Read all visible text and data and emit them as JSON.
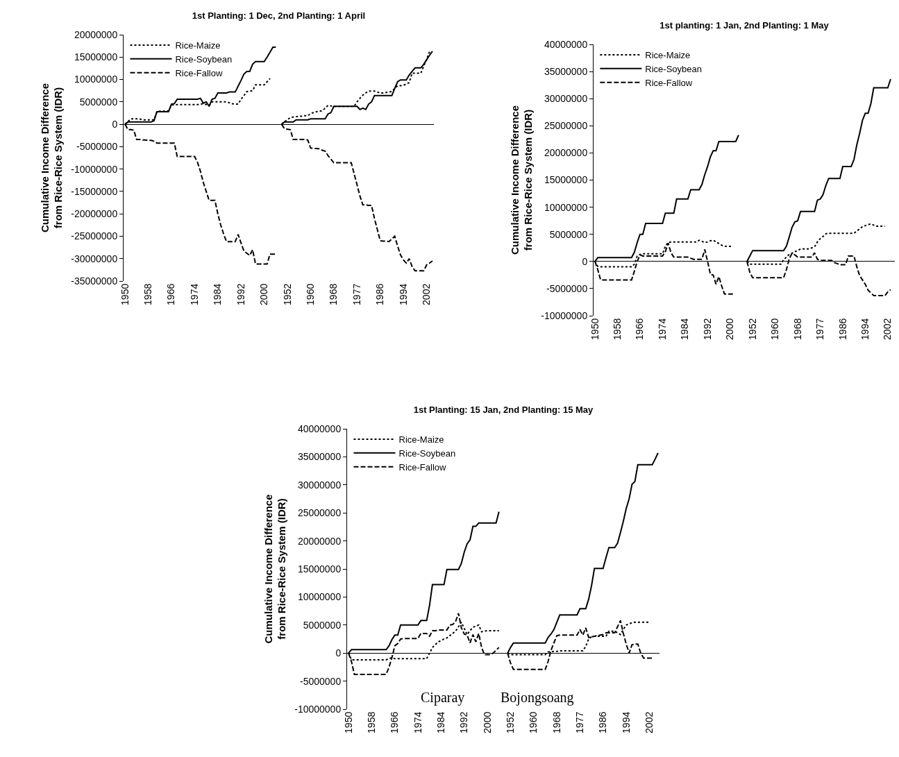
{
  "chart_data": [
    {
      "type": "line",
      "title": "1st Planting: 1 Dec, 2nd Planting: 1 April",
      "ylabel": "Cumulative Income Difference\nfrom Rice-Rice System (IDR)",
      "categories": [
        "1950",
        null,
        null,
        null,
        null,
        null,
        null,
        null,
        "1958",
        null,
        null,
        null,
        null,
        null,
        null,
        null,
        "1966",
        null,
        null,
        null,
        null,
        null,
        null,
        null,
        "1974",
        null,
        null,
        null,
        null,
        null,
        null,
        null,
        "1984",
        null,
        null,
        null,
        null,
        null,
        null,
        null,
        "1992",
        null,
        null,
        null,
        null,
        null,
        null,
        null,
        "2000",
        null,
        null,
        null,
        null,
        null,
        null,
        null,
        "1952",
        null,
        null,
        null,
        null,
        null,
        null,
        null,
        "1960",
        null,
        null,
        null,
        null,
        null,
        null,
        null,
        "1968",
        null,
        null,
        null,
        null,
        null,
        null,
        null,
        "1977",
        null,
        null,
        null,
        null,
        null,
        null,
        null,
        "1986",
        null,
        null,
        null,
        null,
        null,
        null,
        null,
        "1994",
        null,
        null,
        null,
        null,
        null,
        null,
        null,
        "2002",
        null,
        null
      ],
      "ylim": [
        -35000000,
        20000000
      ],
      "yticks": [
        -35000000,
        -30000000,
        -25000000,
        -20000000,
        -15000000,
        -10000000,
        -5000000,
        0,
        5000000,
        10000000,
        15000000,
        20000000
      ],
      "legend": "top left",
      "series": [
        {
          "name": "Rice-Maize",
          "color": "#000000",
          "line_style": "dotted",
          "values": [
            0,
            600000,
            1200000,
            1200000,
            1200000,
            1200000,
            1000000,
            1000000,
            1000000,
            1000000,
            1000000,
            2800000,
            2900000,
            2900000,
            3000000,
            3000000,
            4300000,
            4300000,
            4400000,
            4400000,
            4400000,
            4400000,
            4400000,
            4400000,
            4400000,
            4400000,
            4500000,
            4600000,
            4400000,
            4200000,
            5000000,
            5000000,
            5000000,
            5000000,
            5000000,
            5000000,
            4800000,
            4600000,
            4500000,
            4500000,
            5600000,
            6400000,
            7300000,
            7400000,
            7500000,
            8800000,
            8800000,
            8800000,
            8800000,
            9500000,
            10200000,
            null,
            null,
            null,
            0,
            600000,
            1000000,
            1500000,
            1600000,
            1700000,
            1800000,
            1800000,
            1900000,
            1900000,
            2400000,
            2600000,
            2800000,
            2900000,
            3000000,
            3600000,
            4200000,
            4100000,
            4000000,
            4000000,
            4000000,
            4000000,
            4000000,
            4000000,
            4000000,
            4000000,
            5000000,
            5800000,
            6500000,
            7000000,
            7400000,
            7400000,
            7400000,
            7200000,
            7000000,
            7000000,
            7100000,
            7200000,
            7300000,
            8000000,
            8600000,
            8600000,
            8700000,
            9000000,
            9300000,
            11400000,
            11400000,
            11400000,
            11400000,
            13000000,
            14500000,
            16200000,
            null
          ]
        },
        {
          "name": "Rice-Soybean",
          "color": "#000000",
          "line_style": "solid",
          "values": [
            0,
            500000,
            500000,
            500000,
            500000,
            500000,
            500000,
            500000,
            500000,
            500000,
            800000,
            2800000,
            2800000,
            2800000,
            2800000,
            2800000,
            4500000,
            4600000,
            5600000,
            5600000,
            5600000,
            5600000,
            5600000,
            5600000,
            5600000,
            5600000,
            5800000,
            4700000,
            5000000,
            4000000,
            5600000,
            5800000,
            7000000,
            7000000,
            7000000,
            7000000,
            7200000,
            7200000,
            7200000,
            8500000,
            9800000,
            11200000,
            11800000,
            11800000,
            13400000,
            14000000,
            14000000,
            14000000,
            14000000,
            15000000,
            16100000,
            17200000,
            17200000,
            null,
            0,
            500000,
            500000,
            500000,
            500000,
            1000000,
            1000000,
            1000000,
            1000000,
            1000000,
            1200000,
            1200000,
            1200000,
            1200000,
            1200000,
            1200000,
            2300000,
            2600000,
            4000000,
            4000000,
            4000000,
            4000000,
            4000000,
            4000000,
            4000000,
            4000000,
            4000000,
            3300000,
            3600000,
            3300000,
            4500000,
            5000000,
            6400000,
            6400000,
            6400000,
            6400000,
            6400000,
            6400000,
            6400000,
            8000000,
            9500000,
            9900000,
            9900000,
            9900000,
            11000000,
            11800000,
            12600000,
            12600000,
            12600000,
            13400000,
            14400000,
            15400000,
            16300000
          ]
        },
        {
          "name": "Rice-Fallow",
          "color": "#000000",
          "line_style": "dashed",
          "values": [
            0,
            -1200000,
            -1200000,
            -1300000,
            -3400000,
            -3400000,
            -3500000,
            -3500000,
            -3600000,
            -3600000,
            -3800000,
            -4200000,
            -4200000,
            -4200000,
            -4200000,
            -4200000,
            -4200000,
            -4200000,
            -7200000,
            -7200000,
            -7200000,
            -7200000,
            -7200000,
            -7200000,
            -7200000,
            -8500000,
            -10500000,
            -13000000,
            -15000000,
            -17000000,
            -17000000,
            -17000000,
            -20000000,
            -22500000,
            -24500000,
            -26200000,
            -26200000,
            -26200000,
            -26200000,
            -24600000,
            -26500000,
            -28300000,
            -28800000,
            -29300000,
            -28000000,
            -31200000,
            -31200000,
            -31200000,
            -31200000,
            -31200000,
            -29000000,
            -29000000,
            -29000000,
            null,
            0,
            -1000000,
            -1100000,
            -1200000,
            -3400000,
            -3400000,
            -3400000,
            -3400000,
            -3400000,
            -3500000,
            -5300000,
            -5400000,
            -5400000,
            -5500000,
            -5800000,
            -6000000,
            -7000000,
            -7800000,
            -8600000,
            -8600000,
            -8600000,
            -8600000,
            -8600000,
            -8600000,
            -8600000,
            -11000000,
            -13500000,
            -16000000,
            -18000000,
            -18000000,
            -18100000,
            -18100000,
            -21000000,
            -23500000,
            -26000000,
            -26100000,
            -26100000,
            -26200000,
            -25600000,
            -25000000,
            -27200000,
            -29200000,
            -30300000,
            -31000000,
            -30000000,
            -31800000,
            -32700000,
            -32700000,
            -32700000,
            -32700000,
            -31400000,
            -31000000,
            -30500000
          ]
        }
      ]
    },
    {
      "type": "line",
      "title": "1st planting: 1 Jan, 2nd Planting: 1 May",
      "ylabel": "Cumulative Income Difference\nfrom Rice-Rice System (IDR)",
      "categories": [
        "1950",
        null,
        null,
        null,
        null,
        null,
        null,
        null,
        "1958",
        null,
        null,
        null,
        null,
        null,
        null,
        null,
        "1966",
        null,
        null,
        null,
        null,
        null,
        null,
        null,
        "1974",
        null,
        null,
        null,
        null,
        null,
        null,
        null,
        "1984",
        null,
        null,
        null,
        null,
        null,
        null,
        null,
        "1992",
        null,
        null,
        null,
        null,
        null,
        null,
        null,
        "2000",
        null,
        null,
        null,
        null,
        null,
        null,
        null,
        "1952",
        null,
        null,
        null,
        null,
        null,
        null,
        null,
        "1960",
        null,
        null,
        null,
        null,
        null,
        null,
        null,
        "1968",
        null,
        null,
        null,
        null,
        null,
        null,
        null,
        "1977",
        null,
        null,
        null,
        null,
        null,
        null,
        null,
        "1986",
        null,
        null,
        null,
        null,
        null,
        null,
        null,
        "1994",
        null,
        null,
        null,
        null,
        null,
        null,
        null,
        "2002",
        null,
        null
      ],
      "ylim": [
        -10000000,
        40000000
      ],
      "yticks": [
        -10000000,
        -5000000,
        0,
        5000000,
        10000000,
        15000000,
        20000000,
        25000000,
        30000000,
        35000000,
        40000000
      ],
      "legend": "top left",
      "series": [
        {
          "name": "Rice-Maize",
          "color": "#000000",
          "line_style": "dotted",
          "values": [
            0,
            -900000,
            -1000000,
            -1000000,
            -1000000,
            -1000000,
            -1000000,
            -1000000,
            -1000000,
            -1000000,
            -1000000,
            -1000000,
            -1000000,
            -1000000,
            -500000,
            1000000,
            1300000,
            1400000,
            1400000,
            1400000,
            1400000,
            1400000,
            1400000,
            1400000,
            1400000,
            2800000,
            3500000,
            3600000,
            3600000,
            3600000,
            3600000,
            3600000,
            3600000,
            3600000,
            3600000,
            3600000,
            3600000,
            3900000,
            3700000,
            3500000,
            3600000,
            3800000,
            3900000,
            3600000,
            3300000,
            3000000,
            2800000,
            2800000,
            2800000,
            2800000,
            null,
            null,
            null,
            null,
            0,
            -500000,
            -500000,
            -500000,
            -500000,
            -500000,
            -500000,
            -500000,
            -500000,
            -500000,
            -500000,
            -500000,
            -500000,
            300000,
            800000,
            1300000,
            1500000,
            1800000,
            2000000,
            2300000,
            2300000,
            2300000,
            2300000,
            2500000,
            2700000,
            3600000,
            4200000,
            4600000,
            5100000,
            5200000,
            5200000,
            5200000,
            5200000,
            5200000,
            5200000,
            5200000,
            5200000,
            5200000,
            5200000,
            5600000,
            6000000,
            6400000,
            6600000,
            6800000,
            6900000,
            6700000,
            6500000,
            6500000,
            6500000,
            6500000,
            null,
            null,
            null
          ]
        },
        {
          "name": "Rice-Soybean",
          "color": "#000000",
          "line_style": "solid",
          "values": [
            0,
            700000,
            700000,
            700000,
            700000,
            700000,
            700000,
            700000,
            700000,
            700000,
            700000,
            700000,
            700000,
            700000,
            1700000,
            3500000,
            5000000,
            5000000,
            7000000,
            7000000,
            7000000,
            7000000,
            7000000,
            7000000,
            7000000,
            8900000,
            8900000,
            8900000,
            8900000,
            11500000,
            11500000,
            11500000,
            11500000,
            11500000,
            13200000,
            13200000,
            13200000,
            13200000,
            14200000,
            16000000,
            17500000,
            19300000,
            20400000,
            20400000,
            22100000,
            22100000,
            22100000,
            22100000,
            22100000,
            22100000,
            22100000,
            23300000,
            null,
            null,
            0,
            1000000,
            2000000,
            2000000,
            2000000,
            2000000,
            2000000,
            2000000,
            2000000,
            2000000,
            2000000,
            2000000,
            2000000,
            2000000,
            2800000,
            4500000,
            6300000,
            7300000,
            7500000,
            9200000,
            9200000,
            9200000,
            9200000,
            9200000,
            9200000,
            11300000,
            11500000,
            12300000,
            14000000,
            15300000,
            15300000,
            15300000,
            15300000,
            15300000,
            17500000,
            17500000,
            17500000,
            17500000,
            18800000,
            21500000,
            23600000,
            26000000,
            27300000,
            27300000,
            29100000,
            32000000,
            32000000,
            32000000,
            32000000,
            32000000,
            32000000,
            33600000,
            null
          ]
        },
        {
          "name": "Rice-Fallow",
          "color": "#000000",
          "line_style": "dashed",
          "values": [
            0,
            -1500000,
            -3400000,
            -3400000,
            -3400000,
            -3400000,
            -3400000,
            -3400000,
            -3400000,
            -3400000,
            -3400000,
            -3400000,
            -3400000,
            -3400000,
            -1800000,
            0,
            1200000,
            1000000,
            1000000,
            1000000,
            1000000,
            1000000,
            1000000,
            1000000,
            1000000,
            1800000,
            3400000,
            1600000,
            800000,
            800000,
            800000,
            800000,
            800000,
            800000,
            600000,
            400000,
            400000,
            400000,
            400000,
            2200000,
            0,
            -2400000,
            -2500000,
            -4200000,
            -2800000,
            -4500000,
            -6000000,
            -6000000,
            -6000000,
            -6000000,
            null,
            null,
            null,
            null,
            0,
            -2000000,
            -3000000,
            -3000000,
            -3000000,
            -3000000,
            -3000000,
            -3000000,
            -3000000,
            -3000000,
            -3000000,
            -3000000,
            -3000000,
            -3000000,
            -1500000,
            500000,
            1500000,
            1200000,
            800000,
            800000,
            800000,
            800000,
            800000,
            800000,
            1600000,
            400000,
            200000,
            200000,
            200000,
            200000,
            200000,
            -200000,
            -400000,
            -600000,
            -600000,
            -600000,
            1000000,
            1000000,
            1000000,
            -1000000,
            -2600000,
            -3400000,
            -4200000,
            -5300000,
            -5800000,
            -6300000,
            -6300000,
            -6300000,
            -6300000,
            -6300000,
            -5600000,
            -5200000,
            null
          ]
        }
      ]
    },
    {
      "type": "line",
      "title": "1st Planting: 15 Jan, 2nd Planting: 15 May",
      "ylabel": "Cumulative Income Difference\nfrom Rice-Rice System (IDR)",
      "categories": [
        "1950",
        null,
        null,
        null,
        null,
        null,
        null,
        null,
        "1958",
        null,
        null,
        null,
        null,
        null,
        null,
        null,
        "1966",
        null,
        null,
        null,
        null,
        null,
        null,
        null,
        "1974",
        null,
        null,
        null,
        null,
        null,
        null,
        null,
        "1984",
        null,
        null,
        null,
        null,
        null,
        null,
        null,
        "1992",
        null,
        null,
        null,
        null,
        null,
        null,
        null,
        "2000",
        null,
        null,
        null,
        null,
        null,
        null,
        null,
        "1952",
        null,
        null,
        null,
        null,
        null,
        null,
        null,
        "1960",
        null,
        null,
        null,
        null,
        null,
        null,
        null,
        "1968",
        null,
        null,
        null,
        null,
        null,
        null,
        null,
        "1977",
        null,
        null,
        null,
        null,
        null,
        null,
        null,
        "1986",
        null,
        null,
        null,
        null,
        null,
        null,
        null,
        "1994",
        null,
        null,
        null,
        null,
        null,
        null,
        null,
        "2002",
        null,
        null,
        null
      ],
      "ylim": [
        -10000000,
        40000000
      ],
      "yticks": [
        -10000000,
        -5000000,
        0,
        5000000,
        10000000,
        15000000,
        20000000,
        25000000,
        30000000,
        35000000,
        40000000
      ],
      "legend": "top left",
      "annotations": [
        "Ciparay",
        "Bojongsoang"
      ],
      "series": [
        {
          "name": "Rice-Maize",
          "color": "#000000",
          "line_style": "dotted",
          "values": [
            0,
            -1200000,
            -1200000,
            -1200000,
            -1200000,
            -1200000,
            -1200000,
            -1200000,
            -1200000,
            -1200000,
            -1200000,
            -1200000,
            -1200000,
            -1200000,
            -1000000,
            -800000,
            -1000000,
            -1000000,
            -1000000,
            -1000000,
            -1000000,
            -1000000,
            -1000000,
            -1000000,
            -1000000,
            -1000000,
            -1000000,
            -1000000,
            0,
            1000000,
            1500000,
            2000000,
            2200000,
            2500000,
            2700000,
            3100000,
            3500000,
            3900000,
            4700000,
            5500000,
            4400000,
            3300000,
            4000000,
            4600000,
            4800000,
            5000000,
            3800000,
            3900000,
            4000000,
            4000000,
            4000000,
            4000000,
            4000000,
            null,
            null,
            0,
            -300000,
            -300000,
            -300000,
            -300000,
            -300000,
            -300000,
            -300000,
            -300000,
            -300000,
            -300000,
            -300000,
            -300000,
            -300000,
            200000,
            200000,
            300000,
            300000,
            400000,
            400000,
            400000,
            400000,
            400000,
            400000,
            400000,
            400000,
            400000,
            1200000,
            2500000,
            2900000,
            3000000,
            3000000,
            3000000,
            3000000,
            3000000,
            3900000,
            3900000,
            3900000,
            3600000,
            3300000,
            4200000,
            5000000,
            5200000,
            5400000,
            5500000,
            5500000,
            5500000,
            5500000,
            5500000,
            5500000,
            null,
            null,
            null
          ]
        },
        {
          "name": "Rice-Soybean",
          "color": "#000000",
          "line_style": "solid",
          "values": [
            0,
            600000,
            600000,
            600000,
            600000,
            600000,
            600000,
            600000,
            600000,
            600000,
            600000,
            600000,
            600000,
            600000,
            1300000,
            2400000,
            3200000,
            3200000,
            5000000,
            5000000,
            5000000,
            5000000,
            5000000,
            5000000,
            5000000,
            5800000,
            5800000,
            5800000,
            8500000,
            12200000,
            12200000,
            12200000,
            12200000,
            12200000,
            14900000,
            14900000,
            14900000,
            14900000,
            14900000,
            16000000,
            18000000,
            19500000,
            20200000,
            22600000,
            22600000,
            23200000,
            23200000,
            23200000,
            23200000,
            23200000,
            23200000,
            23200000,
            25200000,
            null,
            null,
            0,
            1000000,
            1800000,
            1800000,
            1800000,
            1800000,
            1800000,
            1800000,
            1800000,
            1800000,
            1800000,
            1800000,
            1800000,
            1800000,
            2800000,
            3400000,
            4200000,
            5500000,
            6800000,
            6800000,
            6800000,
            6800000,
            6800000,
            6800000,
            6800000,
            7900000,
            7900000,
            7900000,
            9600000,
            12000000,
            15100000,
            15100000,
            15100000,
            15100000,
            17000000,
            18800000,
            18800000,
            18800000,
            19600000,
            21500000,
            23500000,
            25800000,
            27500000,
            30100000,
            30600000,
            33600000,
            33600000,
            33600000,
            33600000,
            33600000,
            33600000,
            34600000,
            35700000
          ]
        },
        {
          "name": "Rice-Fallow",
          "color": "#000000",
          "line_style": "dashed",
          "values": [
            0,
            -1500000,
            -3800000,
            -3800000,
            -3800000,
            -3800000,
            -3800000,
            -3800000,
            -3800000,
            -3800000,
            -3800000,
            -3800000,
            -3800000,
            -3800000,
            -2500000,
            -800000,
            1300000,
            1700000,
            2500000,
            2600000,
            2600000,
            2600000,
            2600000,
            2600000,
            2600000,
            3500000,
            3500000,
            3500000,
            3000000,
            4000000,
            4000000,
            4100000,
            4100000,
            4100000,
            4100000,
            5000000,
            5100000,
            5600000,
            7100000,
            4500000,
            3400000,
            3200000,
            1800000,
            3300000,
            2000000,
            3500000,
            1000000,
            -300000,
            -300000,
            -300000,
            0,
            500000,
            1000000,
            null,
            null,
            0,
            -1800000,
            -2900000,
            -2900000,
            -2900000,
            -2900000,
            -2900000,
            -2900000,
            -2900000,
            -2900000,
            -2900000,
            -2900000,
            -2900000,
            -2900000,
            -1500000,
            500000,
            1800000,
            3100000,
            3200000,
            3200000,
            3200000,
            3200000,
            3200000,
            3200000,
            3200000,
            4200000,
            3200000,
            4500000,
            2800000,
            2900000,
            3000000,
            3100000,
            3200000,
            3300000,
            3600000,
            3600000,
            3600000,
            3600000,
            4700000,
            5800000,
            3500000,
            1600000,
            0,
            1500000,
            1600000,
            1600000,
            0,
            -900000,
            -900000,
            -900000,
            -900000,
            null,
            null
          ]
        }
      ]
    }
  ]
}
